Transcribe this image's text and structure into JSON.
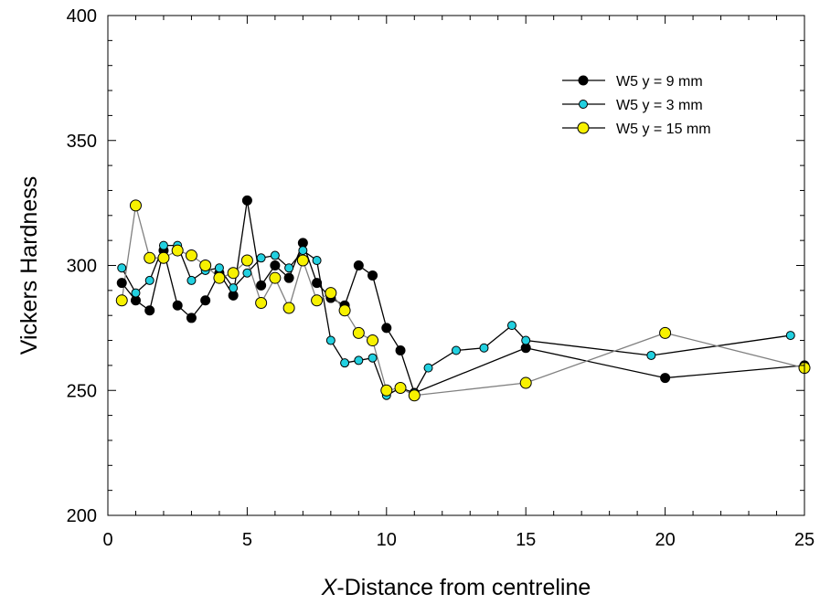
{
  "chart_data": {
    "type": "scatter",
    "title": "",
    "xlabel_italic": "X",
    "xlabel_rest": "-Distance from centreline",
    "ylabel": "Vickers Hardness",
    "xlim": [
      0,
      25
    ],
    "ylim": [
      200,
      400
    ],
    "xticks": [
      "0",
      "5",
      "10",
      "15",
      "20",
      "25"
    ],
    "yticks": [
      "200",
      "250",
      "300",
      "350",
      "400"
    ],
    "grid": false,
    "legend_position": "top-right",
    "series": [
      {
        "name": "W5 y = 9 mm",
        "marker_color": "#000000",
        "line_color": "#000000",
        "x": [
          0.5,
          1,
          1.5,
          2,
          2.5,
          3,
          3.5,
          4,
          4.5,
          5,
          5.5,
          6,
          6.5,
          7,
          7.5,
          8,
          8.5,
          9,
          9.5,
          10,
          10.5,
          11,
          15,
          20,
          25
        ],
        "y": [
          293,
          286,
          282,
          306,
          284,
          279,
          286,
          297,
          288,
          326,
          292,
          300,
          295,
          309,
          293,
          287,
          284,
          300,
          296,
          275,
          266,
          249,
          267,
          255,
          260
        ]
      },
      {
        "name": "W5 y = 3 mm",
        "marker_color": "#22d0e0",
        "line_color": "#000000",
        "x": [
          0.5,
          1,
          1.5,
          2,
          2.5,
          3,
          3.5,
          4,
          4.5,
          5,
          5.5,
          6,
          6.5,
          7,
          7.5,
          8,
          8.5,
          9,
          9.5,
          10,
          10.5,
          11,
          11.5,
          12.5,
          13.5,
          14.5,
          15,
          19.5,
          24.5
        ],
        "y": [
          299,
          289,
          294,
          308,
          308,
          294,
          298,
          299,
          291,
          297,
          303,
          304,
          299,
          306,
          302,
          270,
          261,
          262,
          263,
          248,
          251,
          249,
          259,
          266,
          267,
          276,
          270,
          264,
          272
        ]
      },
      {
        "name": "W5 y = 15 mm",
        "marker_color": "#f7f100",
        "line_color": "#808080",
        "x": [
          0.5,
          1,
          1.5,
          2,
          2.5,
          3,
          3.5,
          4,
          4.5,
          5,
          5.5,
          6,
          6.5,
          7,
          7.5,
          8,
          8.5,
          9,
          9.5,
          10,
          10.5,
          11,
          15,
          20,
          25
        ],
        "y": [
          286,
          324,
          303,
          303,
          306,
          304,
          300,
          295,
          297,
          302,
          285,
          295,
          283,
          302,
          286,
          289,
          282,
          273,
          270,
          250,
          251,
          248,
          253,
          273,
          259
        ]
      }
    ]
  }
}
